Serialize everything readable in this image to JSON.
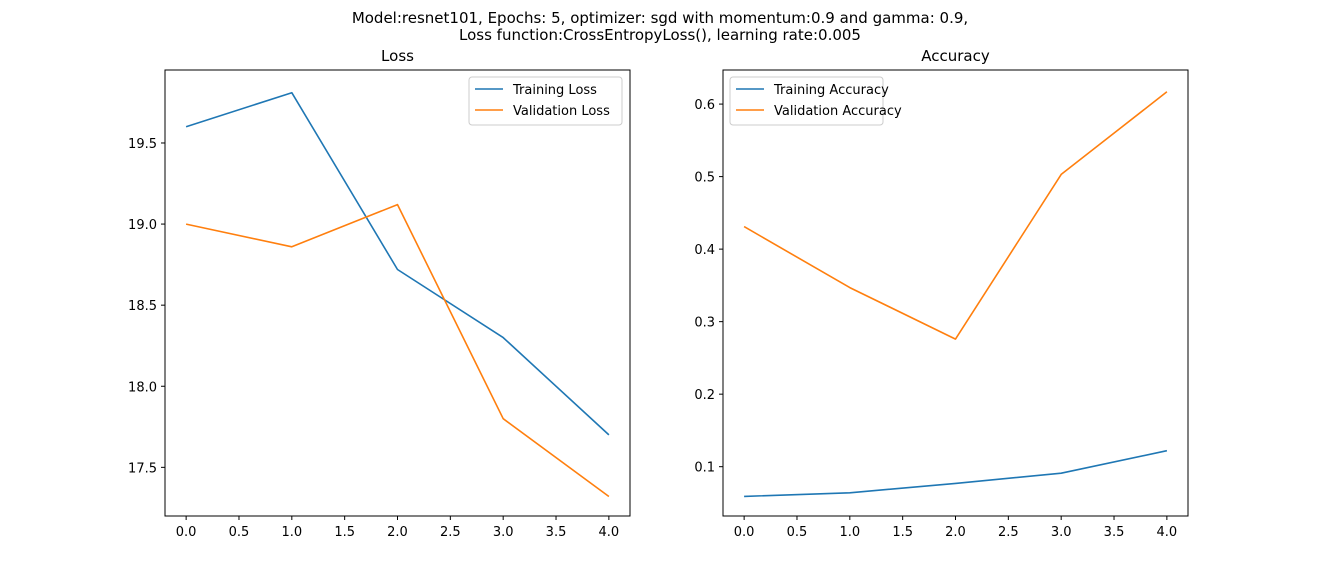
{
  "figure": {
    "suptitle_line1": "Model:resnet101, Epochs: 5, optimizer: sgd with momentum:0.9 and gamma: 0.9,",
    "suptitle_line2": "Loss function:CrossEntropyLoss(), learning rate:0.005"
  },
  "colors": {
    "series1": "#1f77b4",
    "series2": "#ff7f0e",
    "axes": "#000000",
    "legend_border": "#cccccc"
  },
  "chart_data": [
    {
      "type": "line",
      "title": "Loss",
      "xlabel": "",
      "ylabel": "",
      "x": [
        0,
        1,
        2,
        3,
        4
      ],
      "xticks": [
        "0.0",
        "0.5",
        "1.0",
        "1.5",
        "2.0",
        "2.5",
        "3.0",
        "3.5",
        "4.0"
      ],
      "xlim": [
        -0.2,
        4.2
      ],
      "yticks": [
        "17.5",
        "18.0",
        "18.5",
        "19.0",
        "19.5"
      ],
      "ylim": [
        17.2,
        19.95
      ],
      "legend_position": "upper right",
      "grid": false,
      "series": [
        {
          "name": "Training Loss",
          "values": [
            19.6,
            19.81,
            18.72,
            18.3,
            17.7
          ]
        },
        {
          "name": "Validation Loss",
          "values": [
            19.0,
            18.86,
            19.12,
            17.8,
            17.32
          ]
        }
      ]
    },
    {
      "type": "line",
      "title": "Accuracy",
      "xlabel": "",
      "ylabel": "",
      "x": [
        0,
        1,
        2,
        3,
        4
      ],
      "xticks": [
        "0.0",
        "0.5",
        "1.0",
        "1.5",
        "2.0",
        "2.5",
        "3.0",
        "3.5",
        "4.0"
      ],
      "xlim": [
        -0.2,
        4.2
      ],
      "yticks": [
        "0.1",
        "0.2",
        "0.3",
        "0.4",
        "0.5",
        "0.6"
      ],
      "ylim": [
        0.032,
        0.647
      ],
      "legend_position": "upper left",
      "grid": false,
      "series": [
        {
          "name": "Training Accuracy",
          "values": [
            0.059,
            0.064,
            0.077,
            0.091,
            0.122
          ]
        },
        {
          "name": "Validation Accuracy",
          "values": [
            0.431,
            0.347,
            0.276,
            0.503,
            0.617
          ]
        }
      ]
    }
  ]
}
